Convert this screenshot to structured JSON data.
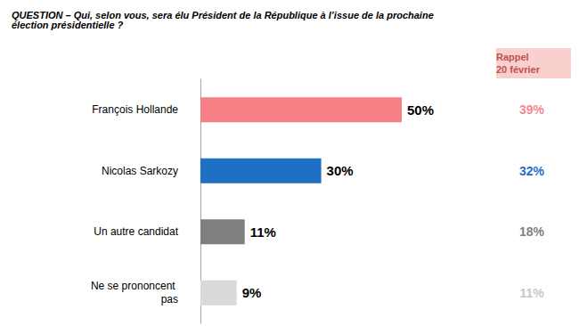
{
  "chart_data": {
    "type": "bar",
    "title": "QUESTION – Qui, selon vous, sera élu Président de la République à l’issue de la prochaine élection présidentielle ?",
    "orientation": "horizontal",
    "categories": [
      "François Hollande",
      "Nicolas Sarkozy",
      "Un autre candidat",
      "Ne se prononcent pas"
    ],
    "values": [
      50,
      30,
      11,
      9
    ],
    "value_labels": [
      "50%",
      "30%",
      "11%",
      "9%"
    ],
    "colors": [
      "#f77f86",
      "#1f6fc5",
      "#7f7f7f",
      "#d9d9d9"
    ],
    "xlim": [
      0,
      50
    ],
    "data_labels": true,
    "tick_labels": "y",
    "grid": false,
    "previous": {
      "label": "Rappel 20 février",
      "values": [
        39,
        32,
        18,
        11
      ],
      "value_labels": [
        "39%",
        "32%",
        "18%",
        "11%"
      ],
      "colors": [
        "#f08a8f",
        "#1f6fc5",
        "#7f7f7f",
        "#c8c8c8"
      ]
    }
  }
}
